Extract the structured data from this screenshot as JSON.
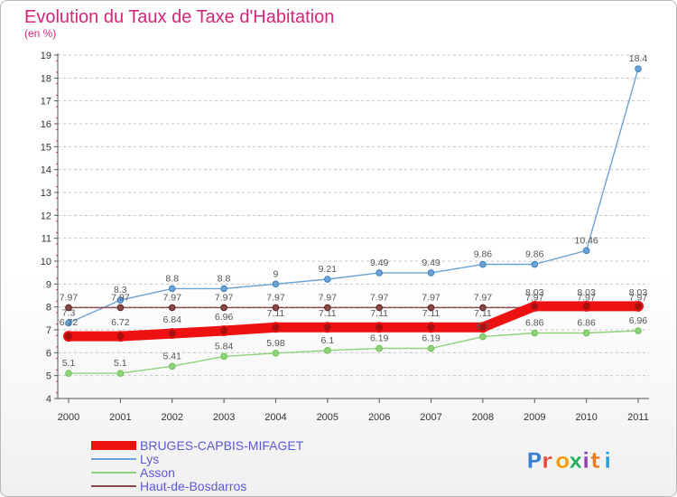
{
  "chart_data": {
    "type": "line",
    "title": "Evolution du Taux de Taxe d'Habitation",
    "subtitle": "(en %)",
    "xlabel": "",
    "ylabel": "",
    "ylim": [
      4,
      19
    ],
    "yticks": [
      "4",
      "5",
      "6",
      "7",
      "8",
      "9",
      "10",
      "11",
      "12",
      "13",
      "14",
      "15",
      "16",
      "17",
      "18",
      "19"
    ],
    "categories": [
      "2000",
      "2001",
      "2002",
      "2003",
      "2004",
      "2005",
      "2006",
      "2007",
      "2008",
      "2009",
      "2010",
      "2011"
    ],
    "grid": "horizontal dashed",
    "legend_position": "bottom-left",
    "series": [
      {
        "name": "BRUGES-CAPBIS-MIFAGET",
        "color": "#ee1111",
        "values": [
          6.72,
          6.72,
          6.84,
          6.96,
          7.11,
          7.11,
          7.11,
          7.11,
          7.11,
          8.03,
          8.03,
          8.03
        ],
        "labels": [
          "6.72",
          "6.72",
          "6.84",
          "6.96",
          "7.11",
          "7.11",
          "7.11",
          "7.11",
          "7.11",
          "8.03",
          "8.03",
          "8.03"
        ]
      },
      {
        "name": "Lys",
        "color": "#6ba3d6",
        "values": [
          7.3,
          8.3,
          8.8,
          8.8,
          9,
          9.21,
          9.49,
          9.49,
          9.86,
          9.86,
          10.46,
          18.4
        ],
        "labels": [
          "7.3",
          "8.3",
          "8.8",
          "8.8",
          "9",
          "9.21",
          "9.49",
          "9.49",
          "9.86",
          "9.86",
          "10.46",
          "18.4"
        ]
      },
      {
        "name": "Asson",
        "color": "#8ed47a",
        "values": [
          5.1,
          5.1,
          5.41,
          5.84,
          5.98,
          6.1,
          6.19,
          6.19,
          6.7,
          6.86,
          6.86,
          6.96
        ],
        "labels": [
          "5.1",
          "5.1",
          "5.41",
          "5.84",
          "5.98",
          "6.1",
          "6.19",
          "6.19",
          "6.7",
          "6.86",
          "6.86",
          "6.96"
        ]
      },
      {
        "name": "Haut-de-Bosdarros",
        "color": "#8b4a4a",
        "values": [
          7.97,
          7.97,
          7.97,
          7.97,
          7.97,
          7.97,
          7.97,
          7.97,
          7.97,
          7.97,
          7.97,
          7.97
        ],
        "labels": [
          "7.97",
          "7.97",
          "7.97",
          "7.97",
          "7.97",
          "7.97",
          "7.97",
          "7.97",
          "7.97",
          "7.97",
          "7.97",
          "7.97"
        ]
      }
    ]
  },
  "logo": {
    "text": "Proxiti",
    "letters": [
      {
        "ch": "P",
        "color": "#3a7fd5"
      },
      {
        "ch": "r",
        "color": "#e74c3c"
      },
      {
        "ch": "o",
        "color": "#f39c12"
      },
      {
        "ch": "x",
        "color": "#27ae60"
      },
      {
        "ch": "i",
        "color": "#8e44ad"
      },
      {
        "ch": "t",
        "color": "#e67e22"
      },
      {
        "ch": "i",
        "color": "#2c9fd6"
      }
    ]
  }
}
